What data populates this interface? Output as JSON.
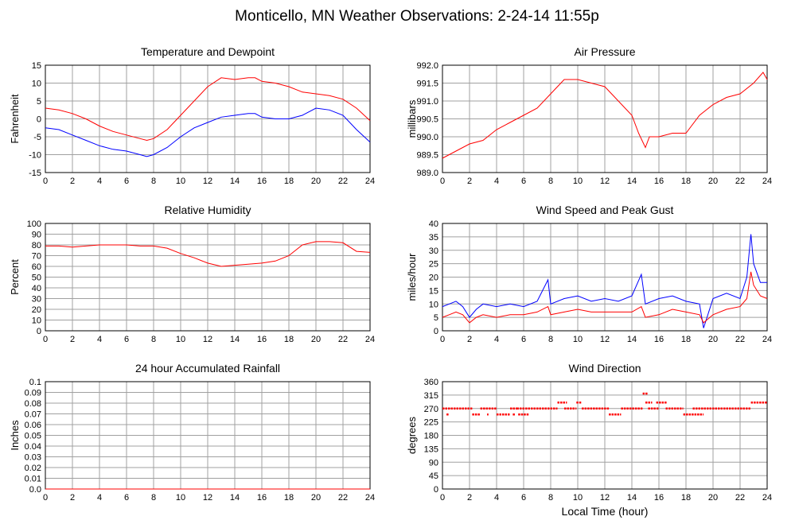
{
  "title": "Monticello, MN Weather Observations: 2-24-14 11:55p",
  "xlabel": "Local Time (hour)",
  "colors": {
    "red": "#ff0000",
    "blue": "#0000ff",
    "grid": "#a0a0a0"
  },
  "chart_data": [
    {
      "id": "temp",
      "type": "line",
      "title": "Temperature and Dewpoint",
      "ylabel": "Fahrenheit",
      "xlim": [
        0,
        24
      ],
      "ylim": [
        -15,
        15
      ],
      "xticks": [
        0,
        2,
        4,
        6,
        8,
        10,
        12,
        14,
        16,
        18,
        20,
        22,
        24
      ],
      "yticks": [
        -15,
        -10,
        -5,
        0,
        5,
        10,
        15
      ],
      "ytick_labels": [
        "-15",
        "-10",
        "-5",
        "0",
        "5",
        "10",
        "15"
      ],
      "grid": true,
      "series": [
        {
          "color": "#ff0000",
          "x": [
            0,
            1,
            2,
            3,
            4,
            5,
            6,
            7,
            7.5,
            8,
            9,
            10,
            11,
            12,
            13,
            14,
            15,
            15.5,
            16,
            17,
            18,
            19,
            20,
            21,
            22,
            23,
            24
          ],
          "y": [
            3,
            2.5,
            1.5,
            0,
            -2,
            -3.5,
            -4.5,
            -5.5,
            -6,
            -5.5,
            -3,
            1,
            5,
            9,
            11.5,
            11,
            11.5,
            11.5,
            10.5,
            10,
            9,
            7.5,
            7,
            6.5,
            5.5,
            3,
            -0.5
          ]
        },
        {
          "color": "#0000ff",
          "x": [
            0,
            1,
            2,
            3,
            4,
            5,
            6,
            7,
            7.5,
            8,
            9,
            10,
            11,
            12,
            13,
            14,
            15,
            15.5,
            16,
            17,
            18,
            19,
            20,
            21,
            22,
            23,
            24
          ],
          "y": [
            -2.5,
            -3,
            -4.5,
            -6,
            -7.5,
            -8.5,
            -9,
            -10,
            -10.5,
            -10,
            -8,
            -5,
            -2.5,
            -1,
            0.5,
            1,
            1.5,
            1.5,
            0.5,
            0,
            0,
            1,
            3,
            2.5,
            1,
            -3,
            -6.5
          ]
        }
      ]
    },
    {
      "id": "pressure",
      "type": "line",
      "title": "Air Pressure",
      "ylabel": "millibars",
      "xlim": [
        0,
        24
      ],
      "ylim": [
        989,
        992
      ],
      "xticks": [
        0,
        2,
        4,
        6,
        8,
        10,
        12,
        14,
        16,
        18,
        20,
        22,
        24
      ],
      "yticks": [
        989,
        989.5,
        990,
        990.5,
        991,
        991.5,
        992
      ],
      "ytick_labels": [
        "989.0",
        "989.5",
        "990.0",
        "990.5",
        "991.0",
        "991.5",
        "992.0"
      ],
      "grid": true,
      "series": [
        {
          "color": "#ff0000",
          "x": [
            0,
            1,
            2,
            3,
            4,
            5,
            6,
            7,
            8,
            9,
            10,
            11,
            12,
            13,
            14,
            14.5,
            15,
            15.3,
            16,
            17,
            18,
            19,
            20,
            21,
            22,
            23,
            23.7,
            24
          ],
          "y": [
            989.4,
            989.6,
            989.8,
            989.9,
            990.2,
            990.4,
            990.6,
            990.8,
            991.2,
            991.6,
            991.6,
            991.5,
            991.4,
            991.0,
            990.6,
            990.1,
            989.7,
            990.0,
            990.0,
            990.1,
            990.1,
            990.6,
            990.9,
            991.1,
            991.2,
            991.5,
            991.8,
            991.6
          ]
        }
      ]
    },
    {
      "id": "humidity",
      "type": "line",
      "title": "Relative Humidity",
      "ylabel": "Percent",
      "xlim": [
        0,
        24
      ],
      "ylim": [
        0,
        100
      ],
      "xticks": [
        0,
        2,
        4,
        6,
        8,
        10,
        12,
        14,
        16,
        18,
        20,
        22,
        24
      ],
      "yticks": [
        0,
        10,
        20,
        30,
        40,
        50,
        60,
        70,
        80,
        90,
        100
      ],
      "ytick_labels": [
        "0",
        "10",
        "20",
        "30",
        "40",
        "50",
        "60",
        "70",
        "80",
        "90",
        "100"
      ],
      "grid": true,
      "series": [
        {
          "color": "#ff0000",
          "x": [
            0,
            1,
            2,
            3,
            4,
            5,
            6,
            7,
            8,
            9,
            10,
            11,
            12,
            13,
            14,
            15,
            16,
            17,
            18,
            19,
            20,
            21,
            22,
            23,
            24
          ],
          "y": [
            79,
            79,
            78,
            79,
            80,
            80,
            80,
            79,
            79,
            77,
            72,
            68,
            63,
            60,
            61,
            62,
            63,
            65,
            70,
            80,
            83,
            83,
            82,
            74,
            73
          ]
        }
      ]
    },
    {
      "id": "wind",
      "type": "line",
      "title": "Wind Speed and Peak Gust",
      "ylabel": "miles/hour",
      "xlim": [
        0,
        24
      ],
      "ylim": [
        0,
        40
      ],
      "xticks": [
        0,
        2,
        4,
        6,
        8,
        10,
        12,
        14,
        16,
        18,
        20,
        22,
        24
      ],
      "yticks": [
        0,
        5,
        10,
        15,
        20,
        25,
        30,
        35,
        40
      ],
      "ytick_labels": [
        "0",
        "5",
        "10",
        "15",
        "20",
        "25",
        "30",
        "35",
        "40"
      ],
      "grid": true,
      "series": [
        {
          "color": "#0000ff",
          "x": [
            0,
            0.5,
            1,
            1.5,
            2,
            2.5,
            3,
            4,
            5,
            6,
            7,
            7.8,
            8,
            9,
            10,
            11,
            12,
            13,
            14,
            14.7,
            15,
            16,
            17,
            18,
            19,
            19.3,
            20,
            21,
            22,
            22.5,
            22.8,
            23,
            23.5,
            24
          ],
          "y": [
            9,
            10,
            11,
            9,
            5,
            8,
            10,
            9,
            10,
            9,
            11,
            19,
            10,
            12,
            13,
            11,
            12,
            11,
            13,
            21,
            10,
            12,
            13,
            11,
            10,
            1,
            12,
            14,
            12,
            20,
            36,
            25,
            18,
            18
          ]
        },
        {
          "color": "#ff0000",
          "x": [
            0,
            0.5,
            1,
            1.5,
            2,
            2.5,
            3,
            4,
            5,
            6,
            7,
            7.8,
            8,
            9,
            10,
            11,
            12,
            13,
            14,
            14.7,
            15,
            16,
            17,
            18,
            19,
            19.3,
            20,
            21,
            22,
            22.5,
            22.8,
            23,
            23.5,
            24
          ],
          "y": [
            5,
            6,
            7,
            6,
            3,
            5,
            6,
            5,
            6,
            6,
            7,
            9,
            6,
            7,
            8,
            7,
            7,
            7,
            7,
            9,
            5,
            6,
            8,
            7,
            6,
            3,
            6,
            8,
            9,
            12,
            22,
            17,
            13,
            12
          ]
        }
      ]
    },
    {
      "id": "rain",
      "type": "line",
      "title": "24 hour Accumulated Rainfall",
      "ylabel": "Inches",
      "xlim": [
        0,
        24
      ],
      "ylim": [
        0,
        0.1
      ],
      "xticks": [
        0,
        2,
        4,
        6,
        8,
        10,
        12,
        14,
        16,
        18,
        20,
        22,
        24
      ],
      "yticks": [
        0,
        0.01,
        0.02,
        0.03,
        0.04,
        0.05,
        0.06,
        0.07,
        0.08,
        0.09,
        0.1
      ],
      "ytick_labels": [
        "0.0",
        "0.01",
        "0.02",
        "0.03",
        "0.04",
        "0.05",
        "0.06",
        "0.07",
        "0.08",
        "0.09",
        "0.1"
      ],
      "grid": true,
      "series": [
        {
          "color": "#ff0000",
          "x": [
            0,
            24
          ],
          "y": [
            0,
            0
          ]
        }
      ]
    },
    {
      "id": "direction",
      "type": "scatter",
      "title": "Wind Direction",
      "ylabel": "degrees",
      "xlim": [
        0,
        24
      ],
      "ylim": [
        0,
        360
      ],
      "xticks": [
        0,
        2,
        4,
        6,
        8,
        10,
        12,
        14,
        16,
        18,
        20,
        22,
        24
      ],
      "yticks": [
        0,
        45,
        90,
        135,
        180,
        225,
        270,
        315,
        360
      ],
      "ytick_labels": [
        "0",
        "45",
        "90",
        "135",
        "180",
        "225",
        "270",
        "315",
        "360"
      ],
      "grid": true,
      "segments": [
        [
          0,
          2.2,
          270
        ],
        [
          0.3,
          0.5,
          250
        ],
        [
          2.2,
          2.8,
          250
        ],
        [
          2.8,
          4,
          270
        ],
        [
          3.3,
          3.4,
          250
        ],
        [
          4,
          5,
          250
        ],
        [
          5,
          5.5,
          270
        ],
        [
          5.2,
          5.4,
          250
        ],
        [
          5.6,
          6.4,
          250
        ],
        [
          5.5,
          8.5,
          270
        ],
        [
          8.5,
          9.2,
          290
        ],
        [
          9,
          9.9,
          270
        ],
        [
          9.9,
          10.3,
          290
        ],
        [
          10.3,
          12.3,
          270
        ],
        [
          12.3,
          13.2,
          250
        ],
        [
          13.2,
          14.8,
          270
        ],
        [
          14.8,
          15.2,
          320
        ],
        [
          15,
          15.5,
          290
        ],
        [
          15.2,
          16,
          270
        ],
        [
          15.8,
          16.6,
          290
        ],
        [
          16.5,
          17.8,
          270
        ],
        [
          17.8,
          19.3,
          250
        ],
        [
          18.5,
          22.8,
          270
        ],
        [
          22.8,
          24,
          290
        ]
      ]
    }
  ]
}
